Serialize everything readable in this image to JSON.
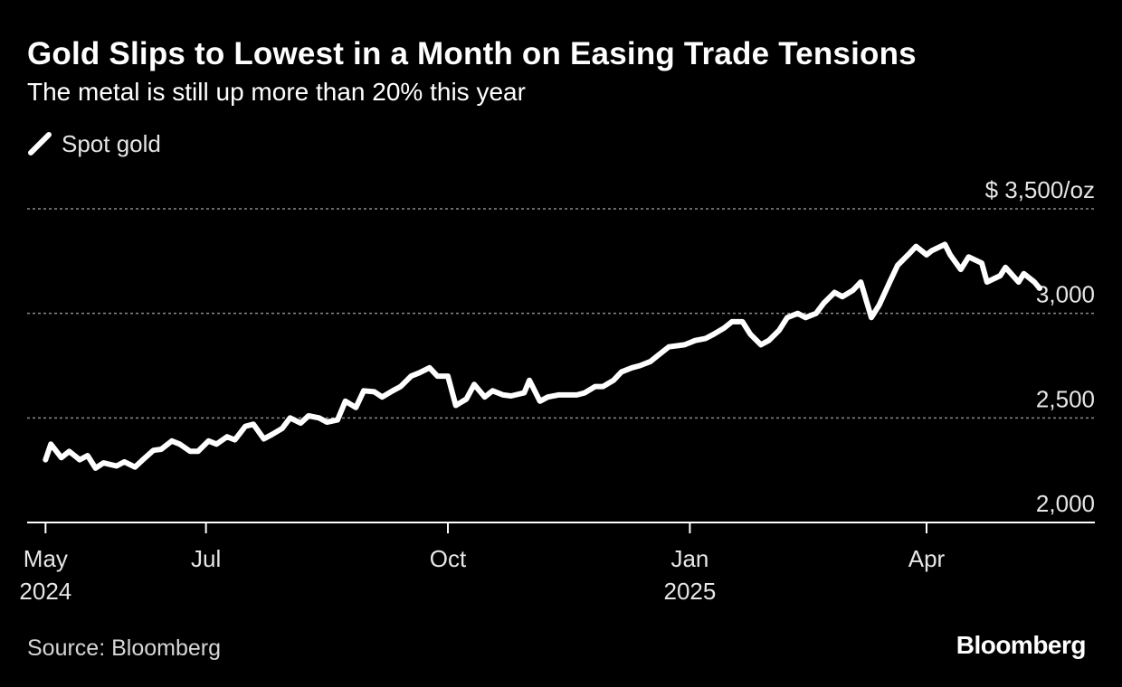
{
  "chart_data": {
    "type": "line",
    "title": "Gold Slips to Lowest in a Month on Easing Trade Tensions",
    "subtitle": "The metal is still up more than 20% this year",
    "legend": [
      "Spot gold"
    ],
    "unit_label": "$ 3,500/oz",
    "ylim": [
      2000,
      3500
    ],
    "y_ticks": [
      {
        "value": 3500,
        "label": "$ 3,500/oz"
      },
      {
        "value": 3000,
        "label": "3,000"
      },
      {
        "value": 2500,
        "label": "2,500"
      },
      {
        "value": 2000,
        "label": "2,000"
      }
    ],
    "x_ticks": [
      {
        "date": "2024-05-01",
        "label": "May",
        "year": "2024"
      },
      {
        "date": "2024-07-01",
        "label": "Jul",
        "year": ""
      },
      {
        "date": "2024-10-01",
        "label": "Oct",
        "year": ""
      },
      {
        "date": "2025-01-01",
        "label": "Jan",
        "year": "2025"
      },
      {
        "date": "2025-04-01",
        "label": "Apr",
        "year": ""
      }
    ],
    "series": [
      {
        "name": "Spot gold",
        "color": "#ffffff",
        "x": [
          "2024-05-01",
          "2024-05-03",
          "2024-05-07",
          "2024-05-10",
          "2024-05-14",
          "2024-05-17",
          "2024-05-20",
          "2024-05-23",
          "2024-05-28",
          "2024-05-31",
          "2024-06-04",
          "2024-06-07",
          "2024-06-11",
          "2024-06-14",
          "2024-06-18",
          "2024-06-21",
          "2024-06-25",
          "2024-06-28",
          "2024-07-02",
          "2024-07-05",
          "2024-07-09",
          "2024-07-12",
          "2024-07-16",
          "2024-07-19",
          "2024-07-23",
          "2024-07-26",
          "2024-07-30",
          "2024-08-02",
          "2024-08-06",
          "2024-08-09",
          "2024-08-13",
          "2024-08-16",
          "2024-08-20",
          "2024-08-23",
          "2024-08-27",
          "2024-08-30",
          "2024-09-03",
          "2024-09-06",
          "2024-09-10",
          "2024-09-13",
          "2024-09-17",
          "2024-09-20",
          "2024-09-24",
          "2024-09-27",
          "2024-10-01",
          "2024-10-04",
          "2024-10-08",
          "2024-10-11",
          "2024-10-15",
          "2024-10-18",
          "2024-10-22",
          "2024-10-25",
          "2024-10-30",
          "2024-11-01",
          "2024-11-05",
          "2024-11-08",
          "2024-11-12",
          "2024-11-14",
          "2024-11-19",
          "2024-11-22",
          "2024-11-26",
          "2024-11-29",
          "2024-12-03",
          "2024-12-06",
          "2024-12-10",
          "2024-12-13",
          "2024-12-17",
          "2024-12-20",
          "2024-12-24",
          "2024-12-30",
          "2025-01-03",
          "2025-01-07",
          "2025-01-10",
          "2025-01-14",
          "2025-01-17",
          "2025-01-21",
          "2025-01-24",
          "2025-01-28",
          "2025-01-31",
          "2025-02-04",
          "2025-02-07",
          "2025-02-11",
          "2025-02-14",
          "2025-02-18",
          "2025-02-21",
          "2025-02-25",
          "2025-02-28",
          "2025-03-04",
          "2025-03-07",
          "2025-03-11",
          "2025-03-14",
          "2025-03-18",
          "2025-03-21",
          "2025-03-25",
          "2025-03-28",
          "2025-04-01",
          "2025-04-03",
          "2025-04-08",
          "2025-04-10",
          "2025-04-14",
          "2025-04-17",
          "2025-04-22",
          "2025-04-24",
          "2025-04-29",
          "2025-05-01",
          "2025-05-06",
          "2025-05-08",
          "2025-05-12",
          "2025-05-14"
        ],
        "values": [
          2300,
          2375,
          2310,
          2340,
          2300,
          2320,
          2260,
          2285,
          2270,
          2290,
          2265,
          2300,
          2345,
          2350,
          2390,
          2375,
          2340,
          2340,
          2390,
          2375,
          2410,
          2395,
          2460,
          2470,
          2400,
          2420,
          2450,
          2500,
          2475,
          2510,
          2500,
          2480,
          2490,
          2580,
          2550,
          2630,
          2625,
          2600,
          2630,
          2650,
          2700,
          2715,
          2740,
          2700,
          2700,
          2560,
          2590,
          2660,
          2600,
          2630,
          2610,
          2605,
          2620,
          2680,
          2580,
          2600,
          2610,
          2610,
          2610,
          2620,
          2650,
          2650,
          2680,
          2720,
          2740,
          2750,
          2770,
          2800,
          2840,
          2850,
          2870,
          2880,
          2900,
          2930,
          2960,
          2960,
          2900,
          2850,
          2870,
          2920,
          2980,
          3000,
          2980,
          3000,
          3050,
          3100,
          3080,
          3110,
          3150,
          2980,
          3040,
          3150,
          3230,
          3280,
          3320,
          3280,
          3300,
          3330,
          3280,
          3210,
          3270,
          3240,
          3150,
          3180,
          3220,
          3150,
          3190,
          3150,
          3120
        ]
      }
    ]
  },
  "footer": {
    "source": "Source: Bloomberg",
    "brand": "Bloomberg"
  }
}
